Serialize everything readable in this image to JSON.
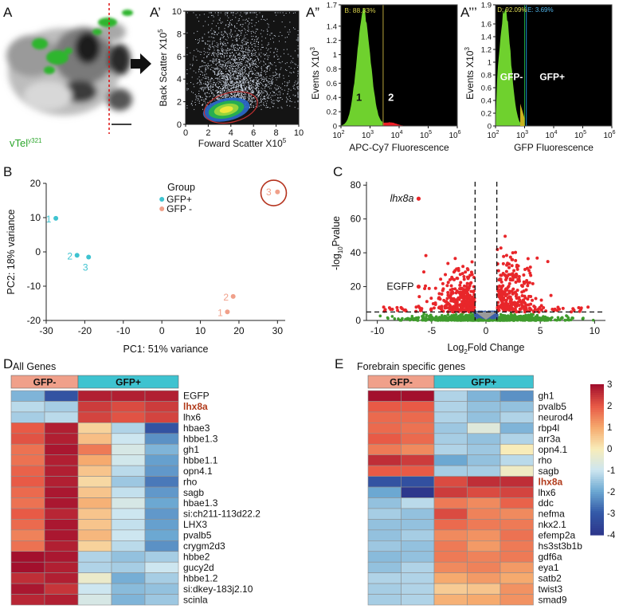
{
  "panels": {
    "A": "A",
    "A1": "A’",
    "A2": "A”",
    "A3": "A’’’",
    "B": "B",
    "C": "C",
    "D": "D",
    "E": "E"
  },
  "micrograph": {
    "label": "vTel",
    "sup": "y321"
  },
  "colors": {
    "gfp_pos": "#3ec3d0",
    "gfp_neg": "#f0a08a",
    "sig": "#e8262a",
    "ns": "#3f9b2c",
    "fc": "#3b5fa8",
    "hm_low": "#2f3f93",
    "hm_high": "#a3102d"
  },
  "chart_data": [
    {
      "id": "A1",
      "type": "scatter",
      "xlabel": "Foward Scatter X10",
      "xlabel_sup": "5",
      "ylabel": "Back Scatter X10",
      "ylabel_sup": "5",
      "xticks": [
        "0",
        "2",
        "4",
        "6",
        "8",
        "10"
      ],
      "yticks": [
        "0",
        "2",
        "4",
        "6",
        "8",
        "10"
      ],
      "xlim": [
        0,
        10
      ],
      "ylim": [
        0,
        10
      ]
    },
    {
      "id": "A2",
      "type": "area",
      "xlabel": "APC-Cy7 Fluorescence",
      "ylabel": "Events X10",
      "ylabel_sup": "3",
      "gate_text": "B: 88.33%",
      "xlim": [
        2,
        6
      ],
      "ylim": [
        0,
        1.7
      ],
      "yticks": [
        "0",
        "0.2",
        "0.4",
        "0.6",
        "0.8",
        "1",
        "1.2",
        "1.4",
        "1.7"
      ],
      "xticks": [
        {
          "b": "10",
          "e": "2"
        },
        {
          "b": "10",
          "e": "3"
        },
        {
          "b": "10",
          "e": "4"
        },
        {
          "b": "10",
          "e": "5"
        },
        {
          "b": "10",
          "e": "6"
        }
      ],
      "region_labels": [
        "1",
        "2"
      ],
      "gate_log10": 3.45
    },
    {
      "id": "A3",
      "type": "area",
      "xlabel": "GFP Fluorescence",
      "ylabel": "Events X10",
      "ylabel_sup": "3",
      "gate_text_1": "D: 92.09%",
      "gate_text_2": "E: 3.69%",
      "xlim": [
        2,
        6
      ],
      "ylim": [
        0,
        1.9
      ],
      "yticks": [
        "0",
        "0.2",
        "0.4",
        "0.6",
        "0.8",
        "1",
        "1.2",
        "1.4",
        "1.6",
        "1.9"
      ],
      "xticks": [
        {
          "b": "10",
          "e": "2"
        },
        {
          "b": "10",
          "e": "3"
        },
        {
          "b": "10",
          "e": "4"
        },
        {
          "b": "10",
          "e": "5"
        },
        {
          "b": "10",
          "e": "6"
        }
      ],
      "region_labels": [
        "GFP-",
        "GFP+"
      ],
      "gate_log10": 3.0
    },
    {
      "id": "B",
      "type": "scatter",
      "xlabel": "PC1: 51% variance",
      "ylabel": "PC2: 18% variance",
      "xlim": [
        -30,
        32
      ],
      "ylim": [
        -20,
        20
      ],
      "xticks": [
        -30,
        -20,
        -10,
        0,
        10,
        20,
        30
      ],
      "yticks": [
        -20,
        -10,
        0,
        10,
        20
      ],
      "legend_title": "Group",
      "series": [
        {
          "name": "GFP+",
          "points": [
            {
              "x": -27.5,
              "y": 9.8,
              "label": "1"
            },
            {
              "x": -22,
              "y": -1,
              "label": "2"
            },
            {
              "x": -19,
              "y": -1.5,
              "label": "3"
            }
          ]
        },
        {
          "name": "GFP -",
          "points": [
            {
              "x": 17,
              "y": -17.5,
              "label": "1"
            },
            {
              "x": 18.5,
              "y": -13,
              "label": "2"
            },
            {
              "x": 30,
              "y": 17.5,
              "label": "3"
            }
          ]
        }
      ]
    },
    {
      "id": "C",
      "type": "scatter",
      "xlabel": "Log2Fold Change",
      "ylabel": "-log10Pvalue",
      "xlim": [
        -11,
        11
      ],
      "ylim": [
        0,
        82
      ],
      "xticks": [
        -10,
        -5,
        0,
        5,
        10
      ],
      "yticks": [
        0,
        20,
        40,
        60,
        80
      ],
      "fc_cutoff": 1,
      "p_cutoff": 5,
      "annotations": [
        {
          "text": "lhx8a",
          "x": -6.2,
          "y": 72
        },
        {
          "text": "EGFP",
          "x": -6.2,
          "y": 20
        }
      ]
    },
    {
      "id": "D",
      "type": "heatmap",
      "title": "All Genes",
      "groups": [
        "GFP-",
        "GFP+"
      ],
      "rows": [
        "EGFP",
        "lhx8a",
        "lhx6",
        "hbae3",
        "hbbe1.3",
        "gh1",
        "hbbe1.1",
        "opn4.1",
        "rho",
        "sagb",
        "hbae1.3",
        "si:ch211-113d22.2",
        "LHX3",
        "pvalb5",
        "crygm2d3",
        "hbbe2",
        "gucy2d",
        "hbbe1.2",
        "si:dkey-183j2.10",
        "scinla"
      ],
      "highlight": "lhx8a",
      "values": [
        [
          -1.8,
          -3.2,
          2.8,
          2.8,
          2.8
        ],
        [
          -1.2,
          -1.4,
          2.4,
          2.2,
          2.4
        ],
        [
          -1.4,
          -1.2,
          2.3,
          2.1,
          2.3
        ],
        [
          2.0,
          2.8,
          0.4,
          -1.3,
          -3.2
        ],
        [
          2.1,
          2.8,
          0.7,
          -1.0,
          -2.3
        ],
        [
          1.7,
          2.9,
          1.6,
          -0.8,
          -1.8
        ],
        [
          1.7,
          2.8,
          1.0,
          -0.9,
          -2.1
        ],
        [
          1.9,
          2.8,
          0.6,
          -1.2,
          -2.2
        ],
        [
          2.0,
          2.8,
          0.3,
          -1.5,
          -2.6
        ],
        [
          1.8,
          2.9,
          0.6,
          -1.1,
          -2.2
        ],
        [
          1.7,
          2.9,
          0.9,
          -0.8,
          -2.0
        ],
        [
          2.0,
          2.7,
          0.6,
          -1.0,
          -2.2
        ],
        [
          1.8,
          2.9,
          0.6,
          -1.1,
          -2.1
        ],
        [
          1.5,
          2.9,
          0.8,
          -1.0,
          -2.0
        ],
        [
          1.7,
          2.8,
          0.4,
          -1.2,
          -2.3
        ],
        [
          3.0,
          2.9,
          -1.3,
          -1.6,
          -1.4
        ],
        [
          3.0,
          2.8,
          -1.3,
          -1.4,
          -1.0
        ],
        [
          2.6,
          2.8,
          -0.3,
          -1.9,
          -1.4
        ],
        [
          2.9,
          2.5,
          -1.0,
          -1.7,
          -1.6
        ],
        [
          2.7,
          2.8,
          -0.8,
          -1.8,
          -1.5
        ]
      ]
    },
    {
      "id": "E",
      "type": "heatmap",
      "title": "Forebrain specific genes",
      "groups": [
        "GFP-",
        "GFP+"
      ],
      "rows": [
        "gh1",
        "pvalb5",
        "neurod4",
        "rbp4l",
        "arr3a",
        "opn4.1",
        "rho",
        "sagb",
        "lhx8a",
        "lhx6",
        "ddc",
        "nefma",
        "nkx2.1",
        "efemp2a",
        "hs3st3b1b",
        "gdf6a",
        "eya1",
        "satb2",
        "twist3",
        "smad9"
      ],
      "highlight": "lhx8a",
      "values": [
        [
          3.0,
          3.0,
          -1.3,
          -1.8,
          -2.3
        ],
        [
          2.0,
          2.0,
          -1.3,
          -1.6,
          -1.6
        ],
        [
          1.8,
          1.8,
          -1.3,
          -1.6,
          -1.3
        ],
        [
          1.8,
          1.7,
          -1.5,
          -0.6,
          -1.8
        ],
        [
          2.0,
          1.8,
          -1.4,
          -1.6,
          -1.3
        ],
        [
          1.6,
          1.4,
          -1.3,
          -1.5,
          0.0
        ],
        [
          2.6,
          2.4,
          -2.0,
          -1.6,
          -1.2
        ],
        [
          2.0,
          2.0,
          -1.4,
          -1.4,
          -0.2
        ],
        [
          -3.2,
          -3.3,
          2.2,
          2.6,
          2.6
        ],
        [
          -2.0,
          -4.0,
          2.4,
          2.2,
          2.3
        ],
        [
          -1.6,
          -1.2,
          1.6,
          1.4,
          1.9
        ],
        [
          -1.4,
          -1.6,
          2.2,
          1.5,
          1.4
        ],
        [
          -1.6,
          -1.6,
          1.8,
          1.6,
          1.6
        ],
        [
          -1.6,
          -1.4,
          1.4,
          1.3,
          1.7
        ],
        [
          -1.5,
          -1.6,
          1.6,
          1.2,
          1.6
        ],
        [
          -1.7,
          -1.6,
          1.6,
          1.5,
          1.6
        ],
        [
          -1.6,
          -1.3,
          1.4,
          1.5,
          1.2
        ],
        [
          -1.3,
          -1.3,
          1.0,
          1.2,
          1.0
        ],
        [
          -1.4,
          -1.3,
          0.5,
          0.6,
          1.3
        ],
        [
          -1.4,
          -1.3,
          0.9,
          1.0,
          1.3
        ]
      ]
    }
  ],
  "colorbar": {
    "ticks": [
      "3",
      "2",
      "1",
      "0",
      "-1",
      "-2",
      "-3",
      "-4"
    ],
    "max": 3,
    "min": -4
  }
}
